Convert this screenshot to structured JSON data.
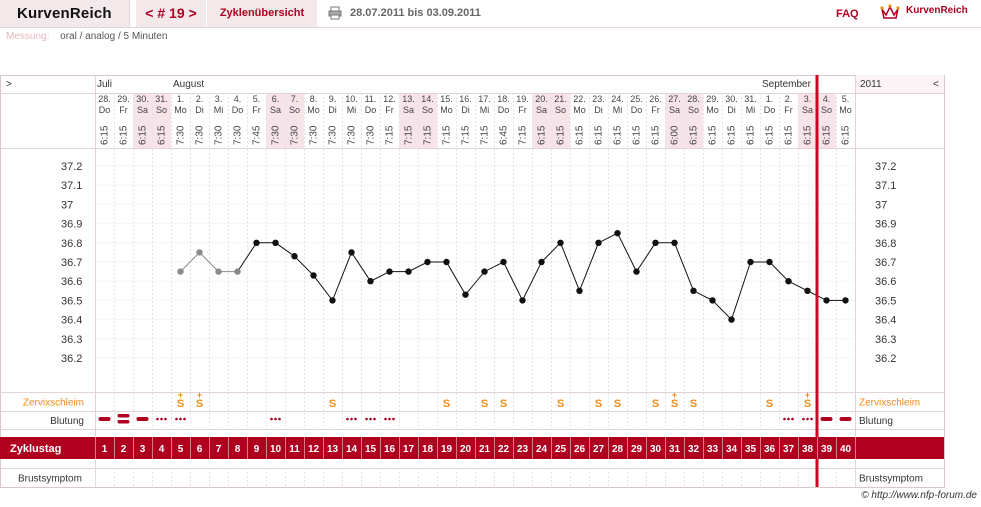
{
  "header": {
    "brand": "KurvenReich",
    "cycle_nav": "< # 19 >",
    "overview": "Zyklenübersicht",
    "date_range": "28.07.2011 bis 03.09.2011",
    "faq": "FAQ",
    "logo_text": "KurvenReich"
  },
  "measurement": {
    "label": "Messung:",
    "value": "oral / analog / 5 Minuten"
  },
  "chart_data": {
    "type": "line",
    "year": "2011",
    "nav_prev": ">",
    "nav_next": "<",
    "months": [
      {
        "label": "Juli",
        "start_index": 0
      },
      {
        "label": "August",
        "start_index": 4
      },
      {
        "label": "September",
        "start_index": 35
      }
    ],
    "days": [
      {
        "date": "28.",
        "weekday": "Do",
        "time": "6:15"
      },
      {
        "date": "29.",
        "weekday": "Fr",
        "time": "6:15"
      },
      {
        "date": "30.",
        "weekday": "Sa",
        "time": "6:15"
      },
      {
        "date": "31.",
        "weekday": "So",
        "time": "6:15"
      },
      {
        "date": "1.",
        "weekday": "Mo",
        "time": "7:30"
      },
      {
        "date": "2.",
        "weekday": "Di",
        "time": "7:30"
      },
      {
        "date": "3.",
        "weekday": "Mi",
        "time": "7:30"
      },
      {
        "date": "4.",
        "weekday": "Do",
        "time": "7:30"
      },
      {
        "date": "5.",
        "weekday": "Fr",
        "time": "7:45"
      },
      {
        "date": "6.",
        "weekday": "Sa",
        "time": "7:30"
      },
      {
        "date": "7.",
        "weekday": "So",
        "time": "7:30"
      },
      {
        "date": "8.",
        "weekday": "Mo",
        "time": "7:30"
      },
      {
        "date": "9.",
        "weekday": "Di",
        "time": "7:30"
      },
      {
        "date": "10.",
        "weekday": "Mi",
        "time": "7:30"
      },
      {
        "date": "11.",
        "weekday": "Do",
        "time": "7:30"
      },
      {
        "date": "12.",
        "weekday": "Fr",
        "time": "7:15"
      },
      {
        "date": "13.",
        "weekday": "Sa",
        "time": "7:15"
      },
      {
        "date": "14.",
        "weekday": "So",
        "time": "7:15"
      },
      {
        "date": "15.",
        "weekday": "Mo",
        "time": "7:15"
      },
      {
        "date": "16.",
        "weekday": "Di",
        "time": "7:15"
      },
      {
        "date": "17.",
        "weekday": "Mi",
        "time": "7:15"
      },
      {
        "date": "18.",
        "weekday": "Do",
        "time": "6:45"
      },
      {
        "date": "19.",
        "weekday": "Fr",
        "time": "7:15"
      },
      {
        "date": "20.",
        "weekday": "Sa",
        "time": "6:15"
      },
      {
        "date": "21.",
        "weekday": "So",
        "time": "6:15"
      },
      {
        "date": "22.",
        "weekday": "Mo",
        "time": "6:15"
      },
      {
        "date": "23.",
        "weekday": "Di",
        "time": "6:15"
      },
      {
        "date": "24.",
        "weekday": "Mi",
        "time": "6:15"
      },
      {
        "date": "25.",
        "weekday": "Do",
        "time": "6:15"
      },
      {
        "date": "26.",
        "weekday": "Fr",
        "time": "6:15"
      },
      {
        "date": "27.",
        "weekday": "Sa",
        "time": "6:00"
      },
      {
        "date": "28.",
        "weekday": "So",
        "time": "6:15"
      },
      {
        "date": "29.",
        "weekday": "Mo",
        "time": "6:15"
      },
      {
        "date": "30.",
        "weekday": "Di",
        "time": "6:15"
      },
      {
        "date": "31.",
        "weekday": "Mi",
        "time": "6:15"
      },
      {
        "date": "1.",
        "weekday": "Do",
        "time": "6:15"
      },
      {
        "date": "2.",
        "weekday": "Fr",
        "time": "6:15"
      },
      {
        "date": "3.",
        "weekday": "Sa",
        "time": "6:15"
      },
      {
        "date": "4.",
        "weekday": "So",
        "time": "6:15"
      },
      {
        "date": "5.",
        "weekday": "Mo",
        "time": "6:15"
      }
    ],
    "y_ticks": [
      "37.2",
      "37.1",
      "37",
      "36.9",
      "36.8",
      "36.7",
      "36.6",
      "36.5",
      "36.4",
      "36.3",
      "36.2"
    ],
    "ylim": [
      36.1,
      37.25
    ],
    "temperatures": [
      null,
      null,
      null,
      null,
      36.65,
      36.75,
      36.65,
      36.65,
      36.8,
      36.8,
      36.73,
      36.63,
      36.5,
      36.75,
      36.6,
      36.65,
      36.65,
      36.7,
      36.7,
      36.53,
      36.65,
      36.7,
      36.5,
      36.7,
      36.8,
      36.55,
      36.8,
      36.85,
      36.65,
      36.8,
      36.8,
      36.55,
      36.5,
      36.4,
      36.7,
      36.7,
      36.6,
      36.55,
      36.5,
      36.5
    ],
    "excluded_until_index": 7,
    "cervical_mucus_label": "Zervixschleim",
    "cervical_mucus": [
      "",
      "",
      "",
      "",
      "S+",
      "S+",
      "",
      "",
      "",
      "",
      "",
      "",
      "S",
      "",
      "",
      "",
      "",
      "",
      "S",
      "",
      "S",
      "S",
      "",
      "",
      "S",
      "",
      "S",
      "S",
      "",
      "S",
      "S+",
      "S",
      "",
      "",
      "",
      "S",
      "",
      "S+",
      "",
      ""
    ],
    "bleeding_label": "Blutung",
    "bleeding": [
      "strong",
      "very-strong",
      "strong",
      "dots",
      "dots",
      "",
      "",
      "",
      "",
      "dots",
      "",
      "",
      "",
      "dots",
      "dots",
      "dots",
      "",
      "",
      "",
      "",
      "",
      "",
      "",
      "",
      "",
      "",
      "",
      "",
      "",
      "",
      "",
      "",
      "",
      "",
      "",
      "",
      "dots",
      "dots",
      "strong",
      "strong"
    ],
    "cycle_day_label": "Zyklustag",
    "cycle_days": [
      "1",
      "2",
      "3",
      "4",
      "5",
      "6",
      "7",
      "8",
      "9",
      "10",
      "11",
      "12",
      "13",
      "14",
      "15",
      "16",
      "17",
      "18",
      "19",
      "20",
      "21",
      "22",
      "23",
      "24",
      "25",
      "26",
      "27",
      "28",
      "29",
      "30",
      "31",
      "32",
      "33",
      "34",
      "35",
      "36",
      "37",
      "38",
      "39",
      "40"
    ],
    "breast_symptom_label": "Brustsymptom",
    "current_day_index": 38,
    "colors": {
      "accent": "#b00020",
      "weekend": "#f7e4e8",
      "mucus": "#f08c1a",
      "line": "#111111",
      "excluded": "#8a8a8a"
    }
  },
  "footer": {
    "copyright": "© http://www.nfp-forum.de"
  }
}
